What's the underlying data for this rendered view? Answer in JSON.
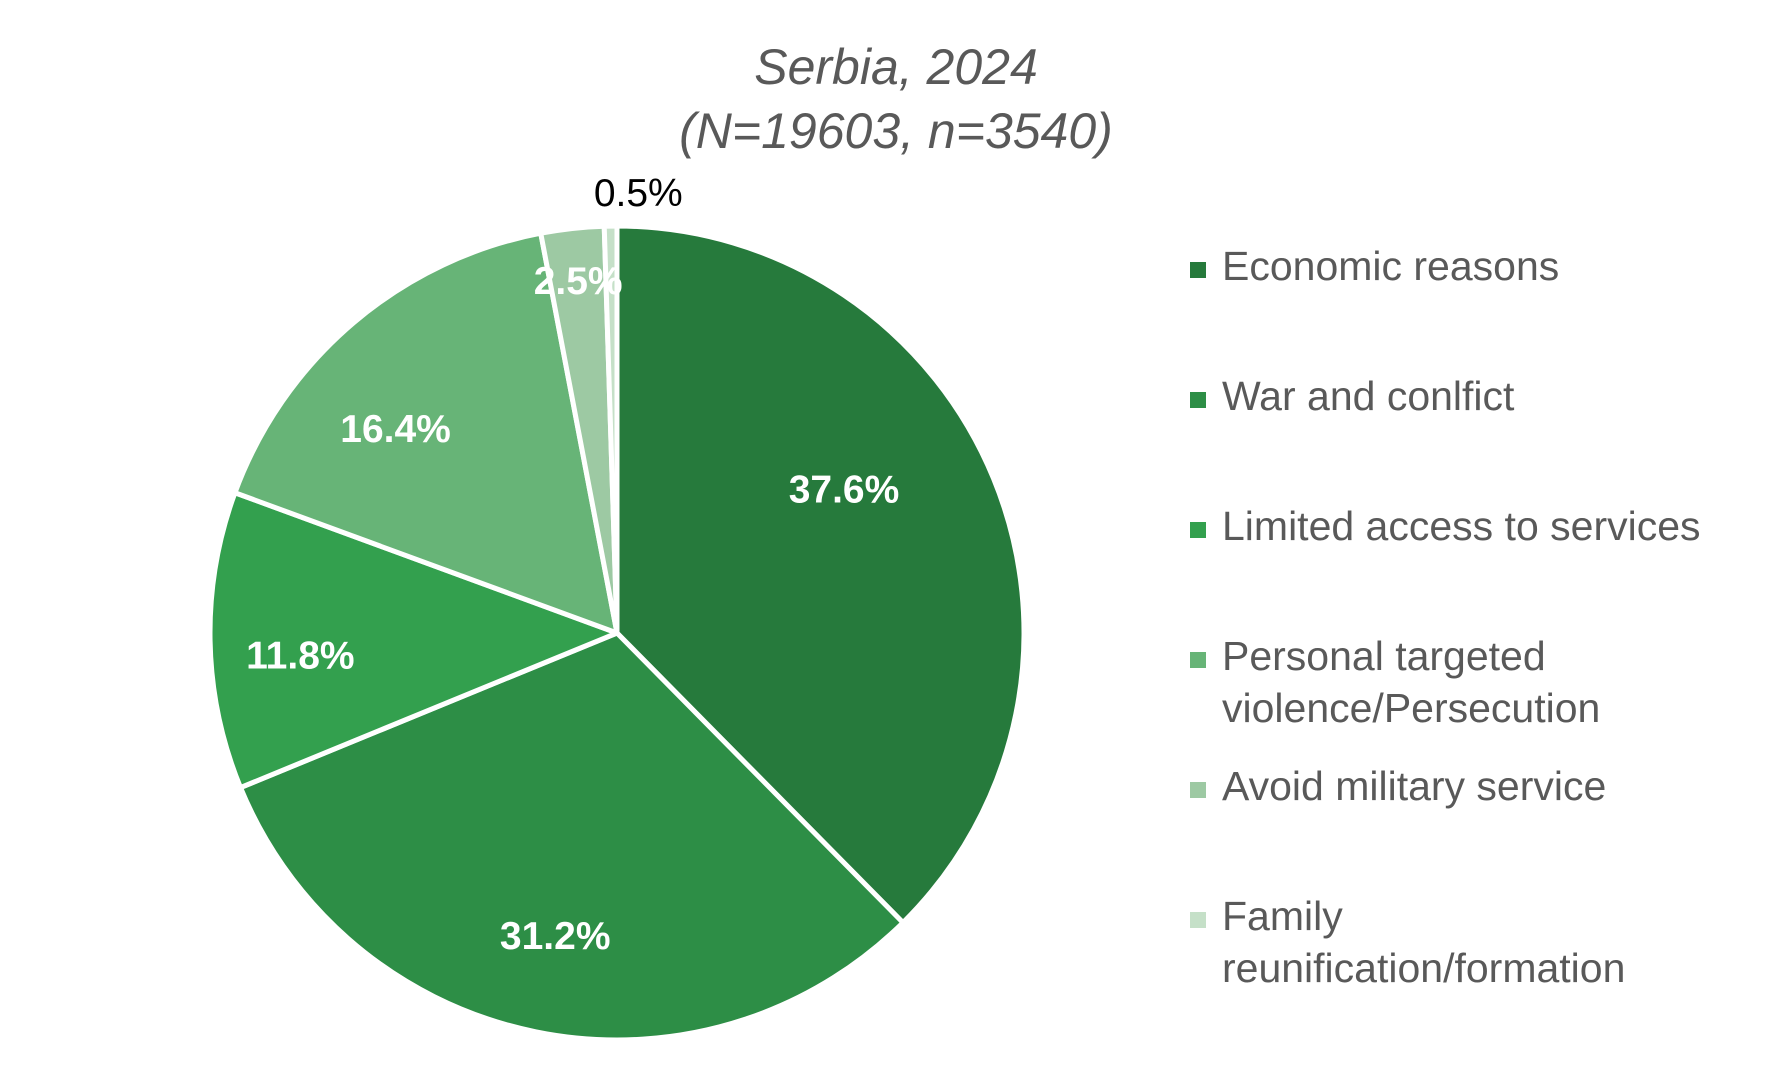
{
  "chart_data": {
    "type": "pie",
    "title": "Serbia, 2024",
    "subtitle": "(N=19603, n=3540)",
    "legend_position": "right",
    "slices": [
      {
        "label": "Economic reasons",
        "value": 37.6,
        "display": "37.6%",
        "color": "#267a3c"
      },
      {
        "label": "War and conlfict",
        "value": 31.2,
        "display": "31.2%",
        "color": "#2d8e46"
      },
      {
        "label": "Limited access to services",
        "value": 11.8,
        "display": "11.8%",
        "color": "#33a04e"
      },
      {
        "label": "Personal targeted violence/Persecution",
        "value": 16.4,
        "display": "16.4%",
        "color": "#67b477"
      },
      {
        "label": "Avoid military service",
        "value": 2.5,
        "display": "2.5%",
        "color": "#9dc9a3"
      },
      {
        "label": "Family reunification/formation",
        "value": 0.5,
        "display": "0.5%",
        "color": "#c5e0c8"
      }
    ],
    "legend_lines": [
      [
        "Economic reasons"
      ],
      [
        "War and conlfict"
      ],
      [
        "Limited access to services"
      ],
      [
        "Personal targeted",
        "violence/Persecution"
      ],
      [
        "Avoid military service"
      ],
      [
        "Family",
        "reunification/formation"
      ]
    ]
  }
}
